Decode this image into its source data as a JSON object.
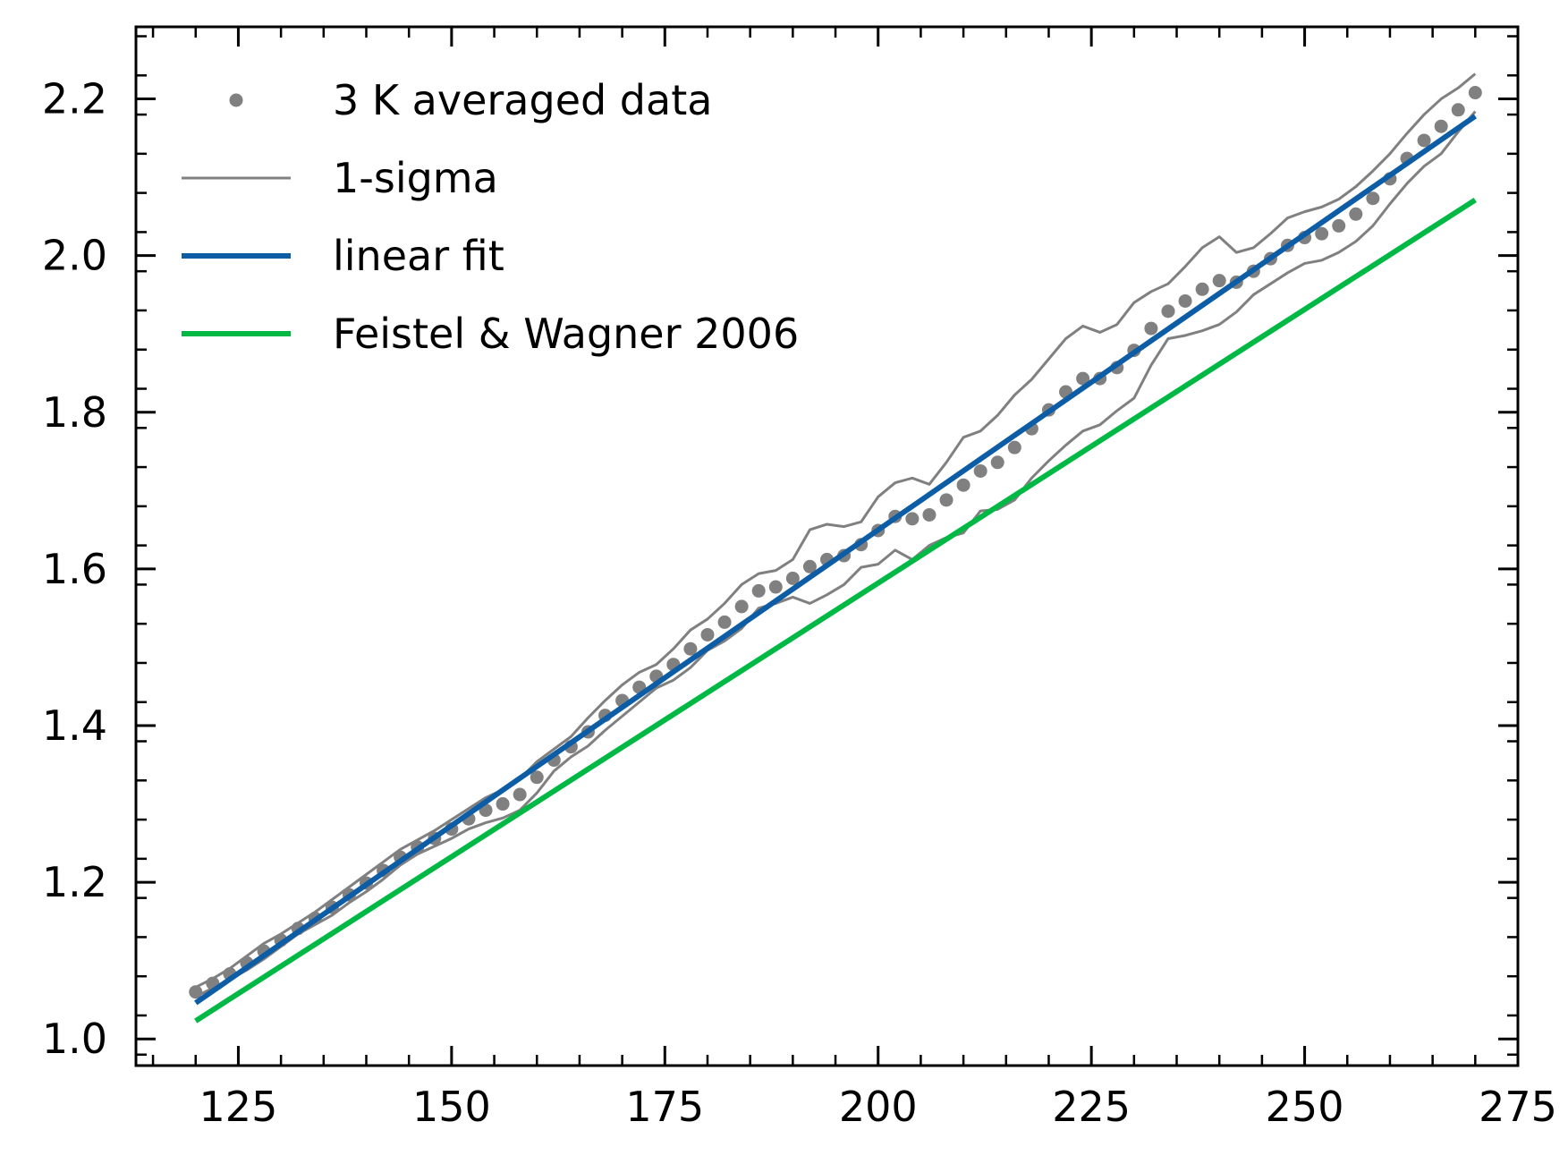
{
  "chart_data": {
    "type": "line",
    "title": "",
    "xlabel": "",
    "ylabel": "",
    "xlim": [
      113,
      275
    ],
    "ylim": [
      0.966,
      2.292
    ],
    "x_ticks": [
      125,
      150,
      175,
      200,
      225,
      250,
      275
    ],
    "x_tick_labels": [
      "125",
      "150",
      "175",
      "200",
      "225",
      "250",
      "275"
    ],
    "y_ticks": [
      1.0,
      1.2,
      1.4,
      1.6,
      1.8,
      2.0,
      2.2
    ],
    "y_tick_labels": [
      "1.0",
      "1.2",
      "1.4",
      "1.6",
      "1.8",
      "2.0",
      "2.2"
    ],
    "grid": false,
    "legend_position": "top-left",
    "series": [
      {
        "name": "3 K averaged data",
        "kind": "scatter",
        "color": "#808080",
        "x": [
          120,
          122,
          124,
          126,
          128,
          130,
          132,
          134,
          136,
          138,
          140,
          142,
          144,
          146,
          148,
          150,
          152,
          154,
          156,
          158,
          160,
          162,
          164,
          166,
          168,
          170,
          172,
          174,
          176,
          178,
          180,
          182,
          184,
          186,
          188,
          190,
          192,
          194,
          196,
          198,
          200,
          202,
          204,
          206,
          208,
          210,
          212,
          214,
          216,
          218,
          220,
          222,
          224,
          226,
          228,
          230,
          232,
          234,
          236,
          238,
          240,
          242,
          244,
          246,
          248,
          250,
          252,
          254,
          256,
          258,
          260,
          262,
          264,
          266,
          268,
          270
        ],
        "y": [
          1.06,
          1.071,
          1.083,
          1.097,
          1.112,
          1.126,
          1.141,
          1.154,
          1.168,
          1.184,
          1.199,
          1.215,
          1.232,
          1.245,
          1.256,
          1.268,
          1.281,
          1.292,
          1.3,
          1.312,
          1.334,
          1.356,
          1.373,
          1.392,
          1.413,
          1.432,
          1.449,
          1.463,
          1.478,
          1.498,
          1.516,
          1.532,
          1.552,
          1.572,
          1.577,
          1.588,
          1.603,
          1.612,
          1.617,
          1.631,
          1.649,
          1.667,
          1.664,
          1.669,
          1.688,
          1.707,
          1.725,
          1.736,
          1.755,
          1.779,
          1.803,
          1.826,
          1.843,
          1.843,
          1.857,
          1.879,
          1.907,
          1.929,
          1.942,
          1.957,
          1.968,
          1.966,
          1.98,
          1.996,
          2.013,
          2.023,
          2.028,
          2.038,
          2.053,
          2.073,
          2.098,
          2.124,
          2.147,
          2.165,
          2.186,
          2.208
        ]
      },
      {
        "name": "1-sigma",
        "kind": "line",
        "color": "#808080",
        "x": [
          120,
          122,
          124,
          126,
          128,
          130,
          132,
          134,
          136,
          138,
          140,
          142,
          144,
          146,
          148,
          150,
          152,
          154,
          156,
          158,
          160,
          162,
          164,
          166,
          168,
          170,
          172,
          174,
          176,
          178,
          180,
          182,
          184,
          186,
          188,
          190,
          192,
          194,
          196,
          198,
          200,
          202,
          204,
          206,
          208,
          210,
          212,
          214,
          216,
          218,
          220,
          222,
          224,
          226,
          228,
          230,
          232,
          234,
          236,
          238,
          240,
          242,
          244,
          246,
          248,
          250,
          252,
          254,
          256,
          258,
          260,
          262,
          264,
          266,
          268,
          270
        ],
        "y": [
          1.066,
          1.077,
          1.09,
          1.106,
          1.122,
          1.134,
          1.148,
          1.162,
          1.178,
          1.194,
          1.21,
          1.226,
          1.242,
          1.254,
          1.266,
          1.28,
          1.294,
          1.308,
          1.318,
          1.332,
          1.354,
          1.37,
          1.386,
          1.41,
          1.432,
          1.452,
          1.468,
          1.478,
          1.498,
          1.522,
          1.536,
          1.556,
          1.58,
          1.594,
          1.598,
          1.612,
          1.65,
          1.657,
          1.654,
          1.66,
          1.692,
          1.71,
          1.716,
          1.708,
          1.736,
          1.768,
          1.776,
          1.796,
          1.822,
          1.842,
          1.868,
          1.894,
          1.91,
          1.902,
          1.912,
          1.94,
          1.954,
          1.964,
          1.986,
          2.01,
          2.024,
          2.004,
          2.01,
          2.028,
          2.048,
          2.056,
          2.062,
          2.072,
          2.088,
          2.108,
          2.13,
          2.156,
          2.18,
          2.2,
          2.214,
          2.232
        ]
      },
      {
        "name": "",
        "kind": "line",
        "color": "#808080",
        "x": [
          120,
          122,
          124,
          126,
          128,
          130,
          132,
          134,
          136,
          138,
          140,
          142,
          144,
          146,
          148,
          150,
          152,
          154,
          156,
          158,
          160,
          162,
          164,
          166,
          168,
          170,
          172,
          174,
          176,
          178,
          180,
          182,
          184,
          186,
          188,
          190,
          192,
          194,
          196,
          198,
          200,
          202,
          204,
          206,
          208,
          210,
          212,
          214,
          216,
          218,
          220,
          222,
          224,
          226,
          228,
          230,
          232,
          234,
          236,
          238,
          240,
          242,
          244,
          246,
          248,
          250,
          252,
          254,
          256,
          258,
          260,
          262,
          264,
          266,
          268,
          270
        ],
        "y": [
          1.054,
          1.065,
          1.076,
          1.088,
          1.102,
          1.118,
          1.134,
          1.146,
          1.158,
          1.174,
          1.188,
          1.204,
          1.222,
          1.236,
          1.246,
          1.256,
          1.268,
          1.276,
          1.282,
          1.292,
          1.314,
          1.342,
          1.36,
          1.374,
          1.394,
          1.412,
          1.43,
          1.448,
          1.458,
          1.474,
          1.496,
          1.508,
          1.524,
          1.55,
          1.556,
          1.564,
          1.556,
          1.567,
          1.58,
          1.602,
          1.606,
          1.624,
          1.612,
          1.63,
          1.64,
          1.646,
          1.674,
          1.676,
          1.688,
          1.716,
          1.738,
          1.758,
          1.776,
          1.784,
          1.802,
          1.818,
          1.86,
          1.894,
          1.898,
          1.904,
          1.912,
          1.928,
          1.95,
          1.964,
          1.978,
          1.99,
          1.994,
          2.004,
          2.018,
          2.038,
          2.066,
          2.092,
          2.114,
          2.13,
          2.158,
          2.184
        ]
      },
      {
        "name": "linear fit",
        "kind": "line",
        "color": "#0C5DA5",
        "x": [
          120,
          270
        ],
        "y": [
          1.046,
          2.178
        ]
      },
      {
        "name": "Feistel & Wagner 2006",
        "kind": "line",
        "color": "#00B945",
        "x": [
          120,
          270
        ],
        "y": [
          1.023,
          2.071
        ]
      }
    ]
  }
}
